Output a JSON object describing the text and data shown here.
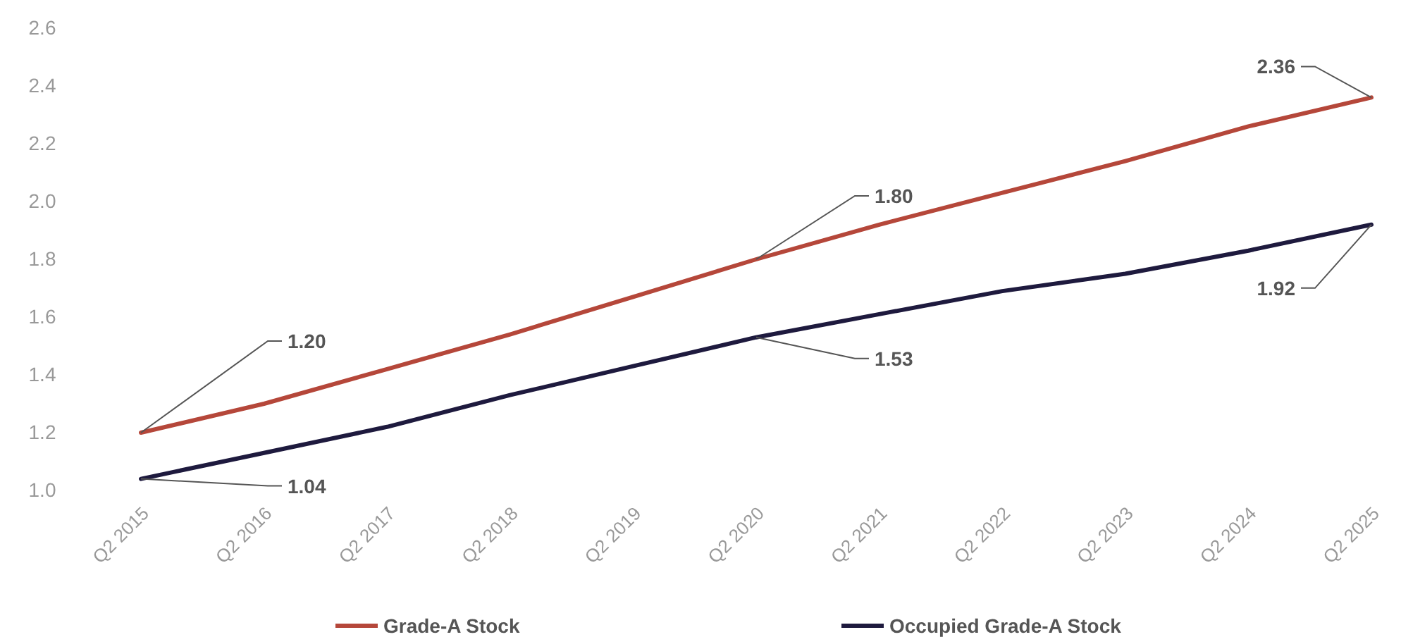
{
  "chart_data": {
    "type": "line",
    "categories": [
      "Q2 2015",
      "Q2 2016",
      "Q2 2017",
      "Q2 2018",
      "Q2 2019",
      "Q2 2020",
      "Q2 2021",
      "Q2 2022",
      "Q2 2023",
      "Q2 2024",
      "Q2 2025"
    ],
    "series": [
      {
        "name": "Grade-A Stock",
        "color": "#b5473a",
        "values": [
          1.2,
          1.3,
          1.42,
          1.54,
          1.67,
          1.8,
          1.92,
          2.03,
          2.14,
          2.26,
          2.36
        ],
        "value_labels": [
          "1.20",
          null,
          null,
          null,
          null,
          "1.80",
          null,
          null,
          null,
          null,
          "2.36"
        ]
      },
      {
        "name": "Occupied Grade-A Stock",
        "color": "#1e1a3e",
        "values": [
          1.04,
          1.13,
          1.22,
          1.33,
          1.43,
          1.53,
          1.61,
          1.69,
          1.75,
          1.83,
          1.92
        ],
        "value_labels": [
          "1.04",
          null,
          null,
          null,
          null,
          "1.53",
          null,
          null,
          null,
          null,
          "1.92"
        ]
      }
    ],
    "ylim": [
      1.0,
      2.6
    ],
    "yticks": [
      {
        "value": 1.0,
        "label": "1.0"
      },
      {
        "value": 1.2,
        "label": "1.2"
      },
      {
        "value": 1.4,
        "label": "1.4"
      },
      {
        "value": 1.6,
        "label": "1.6"
      },
      {
        "value": 1.8,
        "label": "1.8"
      },
      {
        "value": 2.0,
        "label": "2.0"
      },
      {
        "value": 2.2,
        "label": "2.2"
      },
      {
        "value": 2.4,
        "label": "2.4"
      },
      {
        "value": 2.6,
        "label": "2.6"
      }
    ],
    "legend": "bottom",
    "grid": false,
    "marker": "none",
    "line_style": "solid"
  }
}
